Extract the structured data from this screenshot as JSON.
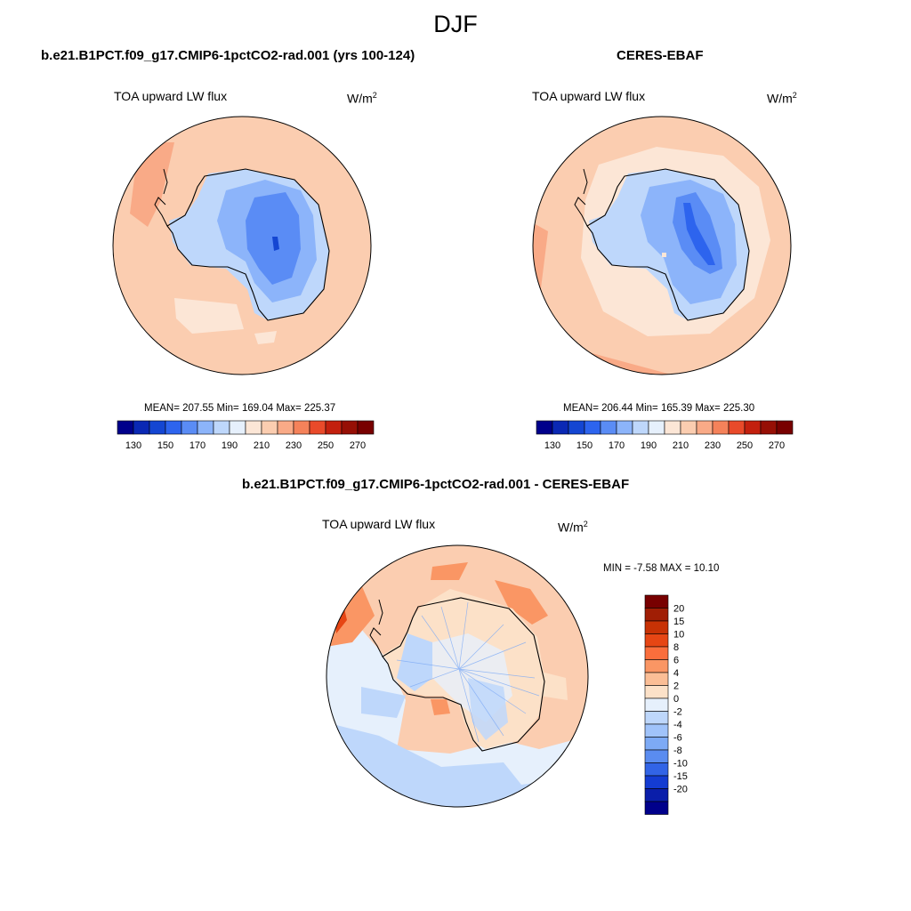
{
  "main_title": "DJF",
  "panels": [
    {
      "title": "b.e21.B1PCT.f09_g17.CMIP6-1pctCO2-rad.001 (yrs 100-124)",
      "variable": "TOA upward LW flux",
      "units_base": "W/m",
      "units_exp": "2",
      "stats": "MEAN= 207.55  Min= 169.04  Max= 225.37"
    },
    {
      "title": "CERES-EBAF",
      "variable": "TOA upward LW flux",
      "units_base": "W/m",
      "units_exp": "2",
      "stats": "MEAN= 206.44  Min= 165.39  Max= 225.30"
    },
    {
      "title": "b.e21.B1PCT.f09_g17.CMIP6-1pctCO2-rad.001 - CERES-EBAF",
      "variable": "TOA upward LW flux",
      "units_base": "W/m",
      "units_exp": "2",
      "stats": "MIN =  -7.58 MAX =  10.10"
    }
  ],
  "colorbar_main": {
    "colors": [
      "#00008b",
      "#0a28b4",
      "#1446d2",
      "#2d64ee",
      "#5a8cf5",
      "#8cb4fa",
      "#bed7fb",
      "#e6f0fc",
      "#fce6d6",
      "#fbcdb0",
      "#f9aa87",
      "#f5825a",
      "#e94a2a",
      "#c3200e",
      "#960f05",
      "#780000"
    ],
    "labels": [
      "130",
      "150",
      "170",
      "190",
      "210",
      "230",
      "250",
      "270"
    ]
  },
  "colorbar_diff": {
    "colors": [
      "#780000",
      "#a01e05",
      "#c83205",
      "#e64614",
      "#fa6e3c",
      "#fa9664",
      "#fbbe96",
      "#fce1c8",
      "#e6f0fc",
      "#bed7fb",
      "#a0c3fa",
      "#7daaf5",
      "#5a8cf0",
      "#3264e6",
      "#143cd2",
      "#0a1eaa",
      "#00008b"
    ],
    "labels": [
      "20",
      "15",
      "10",
      "8",
      "6",
      "4",
      "2",
      "0",
      "-2",
      "-4",
      "-6",
      "-8",
      "-10",
      "-15",
      "-20"
    ]
  },
  "chart_data": [
    {
      "type": "heatmap",
      "title": "b.e21.B1PCT.f09_g17.CMIP6-1pctCO2-rad.001 (yrs 100-124)",
      "variable": "TOA upward LW flux",
      "units": "W/m2",
      "season": "DJF",
      "projection": "south polar stereographic",
      "mean": 207.55,
      "min": 169.04,
      "max": 225.37,
      "levels": [
        130,
        140,
        150,
        160,
        170,
        180,
        190,
        200,
        210,
        220,
        230,
        240,
        250,
        260,
        270
      ]
    },
    {
      "type": "heatmap",
      "title": "CERES-EBAF",
      "variable": "TOA upward LW flux",
      "units": "W/m2",
      "season": "DJF",
      "projection": "south polar stereographic",
      "mean": 206.44,
      "min": 165.39,
      "max": 225.3,
      "levels": [
        130,
        140,
        150,
        160,
        170,
        180,
        190,
        200,
        210,
        220,
        230,
        240,
        250,
        260,
        270
      ]
    },
    {
      "type": "heatmap",
      "title": "b.e21.B1PCT.f09_g17.CMIP6-1pctCO2-rad.001 - CERES-EBAF",
      "variable": "TOA upward LW flux",
      "units": "W/m2",
      "season": "DJF",
      "projection": "south polar stereographic",
      "min": -7.58,
      "max": 10.1,
      "levels": [
        -20,
        -15,
        -10,
        -8,
        -6,
        -4,
        -2,
        0,
        2,
        4,
        6,
        8,
        10,
        15,
        20
      ]
    }
  ]
}
